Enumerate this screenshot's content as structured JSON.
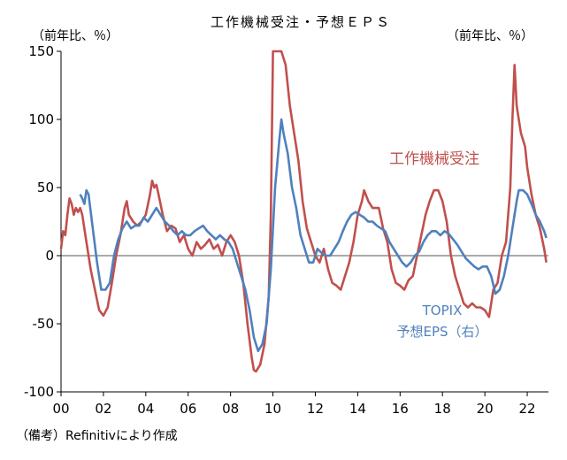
{
  "chart_data": {
    "type": "line",
    "title": "工作機械受注・予想ＥＰＳ",
    "unit_left": "（前年比、％）",
    "unit_right": "（前年比、％）",
    "ylim": [
      -100,
      150
    ],
    "yticks": [
      "150",
      "100",
      "50",
      "0",
      "-50",
      "-100"
    ],
    "xlim": [
      2000,
      2023
    ],
    "xticks": [
      "00",
      "02",
      "04",
      "06",
      "08",
      "10",
      "12",
      "14",
      "16",
      "18",
      "20",
      "22"
    ],
    "grid": false,
    "source_note": "（備考）Refinitivにより作成",
    "series": [
      {
        "name": "工作機械受注",
        "label": "工作機械受注",
        "color": "#c0504d",
        "points": [
          [
            2000.0,
            5
          ],
          [
            2000.1,
            18
          ],
          [
            2000.2,
            15
          ],
          [
            2000.3,
            30
          ],
          [
            2000.4,
            42
          ],
          [
            2000.5,
            38
          ],
          [
            2000.6,
            30
          ],
          [
            2000.7,
            35
          ],
          [
            2000.8,
            32
          ],
          [
            2000.9,
            35
          ],
          [
            2001.0,
            30
          ],
          [
            2001.2,
            10
          ],
          [
            2001.4,
            -10
          ],
          [
            2001.6,
            -25
          ],
          [
            2001.8,
            -40
          ],
          [
            2002.0,
            -44
          ],
          [
            2002.2,
            -38
          ],
          [
            2002.4,
            -20
          ],
          [
            2002.6,
            0
          ],
          [
            2002.8,
            15
          ],
          [
            2003.0,
            35
          ],
          [
            2003.1,
            40
          ],
          [
            2003.2,
            30
          ],
          [
            2003.4,
            25
          ],
          [
            2003.6,
            22
          ],
          [
            2003.8,
            25
          ],
          [
            2004.0,
            30
          ],
          [
            2004.2,
            45
          ],
          [
            2004.3,
            55
          ],
          [
            2004.4,
            50
          ],
          [
            2004.5,
            52
          ],
          [
            2004.6,
            45
          ],
          [
            2004.8,
            30
          ],
          [
            2005.0,
            18
          ],
          [
            2005.2,
            22
          ],
          [
            2005.4,
            20
          ],
          [
            2005.6,
            10
          ],
          [
            2005.8,
            15
          ],
          [
            2006.0,
            5
          ],
          [
            2006.2,
            0
          ],
          [
            2006.4,
            10
          ],
          [
            2006.6,
            5
          ],
          [
            2006.8,
            8
          ],
          [
            2007.0,
            12
          ],
          [
            2007.2,
            5
          ],
          [
            2007.4,
            8
          ],
          [
            2007.6,
            0
          ],
          [
            2007.8,
            10
          ],
          [
            2008.0,
            15
          ],
          [
            2008.2,
            10
          ],
          [
            2008.4,
            0
          ],
          [
            2008.6,
            -20
          ],
          [
            2008.8,
            -50
          ],
          [
            2009.0,
            -75
          ],
          [
            2009.1,
            -84
          ],
          [
            2009.2,
            -85
          ],
          [
            2009.4,
            -80
          ],
          [
            2009.6,
            -65
          ],
          [
            2009.8,
            -30
          ],
          [
            2009.9,
            30
          ],
          [
            2010.0,
            150
          ],
          [
            2010.2,
            150
          ],
          [
            2010.4,
            150
          ],
          [
            2010.6,
            140
          ],
          [
            2010.8,
            110
          ],
          [
            2011.0,
            90
          ],
          [
            2011.2,
            70
          ],
          [
            2011.4,
            40
          ],
          [
            2011.6,
            20
          ],
          [
            2011.8,
            10
          ],
          [
            2012.0,
            0
          ],
          [
            2012.2,
            -5
          ],
          [
            2012.4,
            5
          ],
          [
            2012.6,
            -10
          ],
          [
            2012.8,
            -20
          ],
          [
            2013.0,
            -22
          ],
          [
            2013.2,
            -25
          ],
          [
            2013.4,
            -15
          ],
          [
            2013.6,
            -5
          ],
          [
            2013.8,
            10
          ],
          [
            2014.0,
            30
          ],
          [
            2014.2,
            40
          ],
          [
            2014.3,
            48
          ],
          [
            2014.5,
            40
          ],
          [
            2014.7,
            35
          ],
          [
            2015.0,
            35
          ],
          [
            2015.2,
            20
          ],
          [
            2015.4,
            10
          ],
          [
            2015.6,
            -10
          ],
          [
            2015.8,
            -20
          ],
          [
            2016.0,
            -22
          ],
          [
            2016.2,
            -25
          ],
          [
            2016.4,
            -18
          ],
          [
            2016.6,
            -15
          ],
          [
            2016.8,
            0
          ],
          [
            2017.0,
            15
          ],
          [
            2017.2,
            30
          ],
          [
            2017.4,
            40
          ],
          [
            2017.6,
            48
          ],
          [
            2017.8,
            48
          ],
          [
            2018.0,
            40
          ],
          [
            2018.2,
            25
          ],
          [
            2018.4,
            0
          ],
          [
            2018.6,
            -15
          ],
          [
            2018.8,
            -25
          ],
          [
            2019.0,
            -35
          ],
          [
            2019.2,
            -38
          ],
          [
            2019.4,
            -35
          ],
          [
            2019.6,
            -38
          ],
          [
            2019.8,
            -38
          ],
          [
            2020.0,
            -40
          ],
          [
            2020.2,
            -45
          ],
          [
            2020.4,
            -25
          ],
          [
            2020.6,
            -20
          ],
          [
            2020.8,
            0
          ],
          [
            2021.0,
            10
          ],
          [
            2021.2,
            50
          ],
          [
            2021.3,
            100
          ],
          [
            2021.4,
            140
          ],
          [
            2021.5,
            110
          ],
          [
            2021.7,
            90
          ],
          [
            2021.9,
            80
          ],
          [
            2022.0,
            65
          ],
          [
            2022.2,
            45
          ],
          [
            2022.4,
            30
          ],
          [
            2022.6,
            20
          ],
          [
            2022.8,
            5
          ],
          [
            2022.9,
            -5
          ]
        ]
      },
      {
        "name": "TOPIX 予想EPS（右）",
        "label_line1": "TOPIX",
        "label_line2": "予想EPS（右）",
        "color": "#4f81bd",
        "points": [
          [
            2000.9,
            45
          ],
          [
            2001.0,
            42
          ],
          [
            2001.1,
            38
          ],
          [
            2001.2,
            48
          ],
          [
            2001.3,
            45
          ],
          [
            2001.5,
            20
          ],
          [
            2001.7,
            -5
          ],
          [
            2001.9,
            -25
          ],
          [
            2002.1,
            -25
          ],
          [
            2002.3,
            -20
          ],
          [
            2002.5,
            0
          ],
          [
            2002.7,
            12
          ],
          [
            2002.9,
            20
          ],
          [
            2003.1,
            25
          ],
          [
            2003.3,
            20
          ],
          [
            2003.5,
            22
          ],
          [
            2003.7,
            22
          ],
          [
            2003.9,
            28
          ],
          [
            2004.1,
            25
          ],
          [
            2004.3,
            30
          ],
          [
            2004.5,
            35
          ],
          [
            2004.7,
            30
          ],
          [
            2004.9,
            25
          ],
          [
            2005.1,
            22
          ],
          [
            2005.3,
            18
          ],
          [
            2005.5,
            15
          ],
          [
            2005.7,
            18
          ],
          [
            2005.9,
            15
          ],
          [
            2006.1,
            15
          ],
          [
            2006.3,
            18
          ],
          [
            2006.5,
            20
          ],
          [
            2006.7,
            22
          ],
          [
            2006.9,
            18
          ],
          [
            2007.1,
            15
          ],
          [
            2007.3,
            12
          ],
          [
            2007.5,
            15
          ],
          [
            2007.7,
            12
          ],
          [
            2007.9,
            10
          ],
          [
            2008.1,
            5
          ],
          [
            2008.3,
            -5
          ],
          [
            2008.5,
            -15
          ],
          [
            2008.7,
            -25
          ],
          [
            2008.9,
            -40
          ],
          [
            2009.1,
            -60
          ],
          [
            2009.3,
            -70
          ],
          [
            2009.5,
            -65
          ],
          [
            2009.7,
            -50
          ],
          [
            2009.9,
            -10
          ],
          [
            2010.1,
            50
          ],
          [
            2010.3,
            85
          ],
          [
            2010.4,
            100
          ],
          [
            2010.5,
            90
          ],
          [
            2010.7,
            75
          ],
          [
            2010.9,
            50
          ],
          [
            2011.1,
            35
          ],
          [
            2011.3,
            15
          ],
          [
            2011.5,
            5
          ],
          [
            2011.7,
            -5
          ],
          [
            2011.9,
            -5
          ],
          [
            2012.1,
            5
          ],
          [
            2012.3,
            2
          ],
          [
            2012.5,
            0
          ],
          [
            2012.7,
            0
          ],
          [
            2012.9,
            5
          ],
          [
            2013.1,
            10
          ],
          [
            2013.3,
            18
          ],
          [
            2013.5,
            25
          ],
          [
            2013.7,
            30
          ],
          [
            2013.9,
            32
          ],
          [
            2014.1,
            30
          ],
          [
            2014.3,
            28
          ],
          [
            2014.5,
            25
          ],
          [
            2014.7,
            25
          ],
          [
            2014.9,
            22
          ],
          [
            2015.1,
            20
          ],
          [
            2015.3,
            18
          ],
          [
            2015.5,
            10
          ],
          [
            2015.7,
            5
          ],
          [
            2015.9,
            0
          ],
          [
            2016.1,
            -5
          ],
          [
            2016.3,
            -8
          ],
          [
            2016.5,
            -5
          ],
          [
            2016.7,
            0
          ],
          [
            2016.9,
            3
          ],
          [
            2017.1,
            10
          ],
          [
            2017.3,
            15
          ],
          [
            2017.5,
            18
          ],
          [
            2017.7,
            18
          ],
          [
            2017.9,
            15
          ],
          [
            2018.1,
            18
          ],
          [
            2018.3,
            16
          ],
          [
            2018.5,
            12
          ],
          [
            2018.7,
            8
          ],
          [
            2018.9,
            3
          ],
          [
            2019.1,
            -2
          ],
          [
            2019.3,
            -5
          ],
          [
            2019.5,
            -8
          ],
          [
            2019.7,
            -10
          ],
          [
            2019.9,
            -8
          ],
          [
            2020.1,
            -8
          ],
          [
            2020.3,
            -15
          ],
          [
            2020.5,
            -28
          ],
          [
            2020.7,
            -25
          ],
          [
            2020.9,
            -15
          ],
          [
            2021.1,
            0
          ],
          [
            2021.3,
            20
          ],
          [
            2021.5,
            40
          ],
          [
            2021.6,
            48
          ],
          [
            2021.8,
            48
          ],
          [
            2022.0,
            45
          ],
          [
            2022.2,
            38
          ],
          [
            2022.4,
            30
          ],
          [
            2022.6,
            25
          ],
          [
            2022.8,
            18
          ],
          [
            2022.9,
            13
          ]
        ]
      }
    ]
  }
}
